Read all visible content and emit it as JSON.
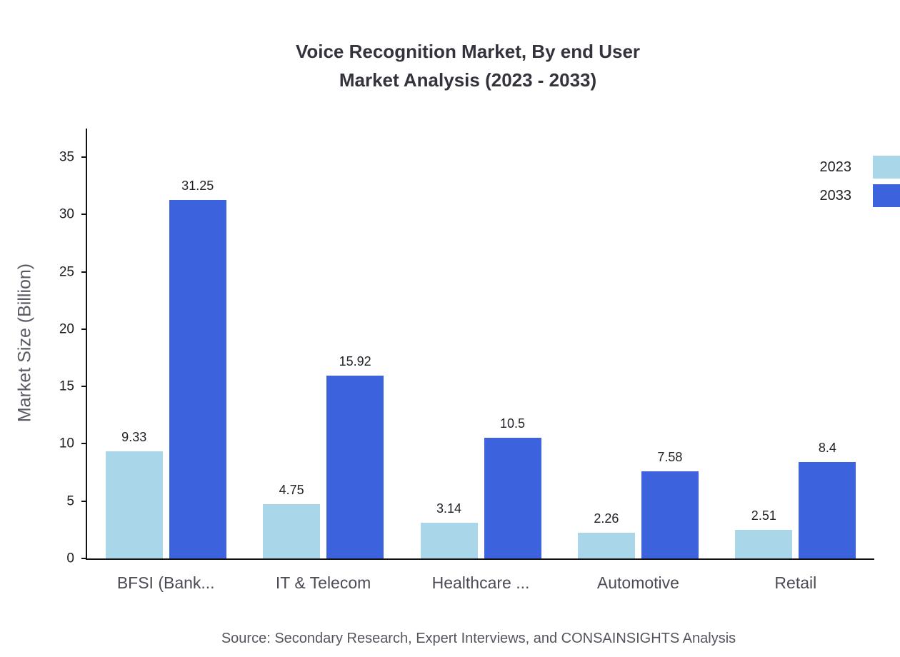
{
  "title": {
    "line1": "Voice Recognition Market, By end User",
    "line2": "Market Analysis (2023 - 2033)"
  },
  "source_note": "Source: Secondary Research, Expert Interviews, and CONSAINSIGHTS Analysis",
  "colors": {
    "series_2023": "#A9D6E8",
    "series_2033": "#3D62DE",
    "axis": "#111111",
    "title_text": "#33333d",
    "muted_text": "#55555f"
  },
  "chart_data": {
    "type": "bar",
    "title": "Voice Recognition Market, By end User Market Analysis (2023 - 2033)",
    "xlabel": "",
    "ylabel": "Market Size (Billion)",
    "categories": [
      "BFSI (Bank...",
      "IT & Telecom",
      "Healthcare ...",
      "Automotive",
      "Retail"
    ],
    "series": [
      {
        "name": "2023",
        "color": "#A9D6E8",
        "values": [
          9.33,
          4.75,
          3.14,
          2.26,
          2.51
        ]
      },
      {
        "name": "2033",
        "color": "#3D62DE",
        "values": [
          31.25,
          15.92,
          10.5,
          7.58,
          8.4
        ]
      }
    ],
    "ylim": [
      0,
      37.5
    ],
    "yticks": [
      0,
      5,
      10,
      15,
      20,
      25,
      30,
      35
    ],
    "grid": false,
    "legend_position": "top-right"
  }
}
